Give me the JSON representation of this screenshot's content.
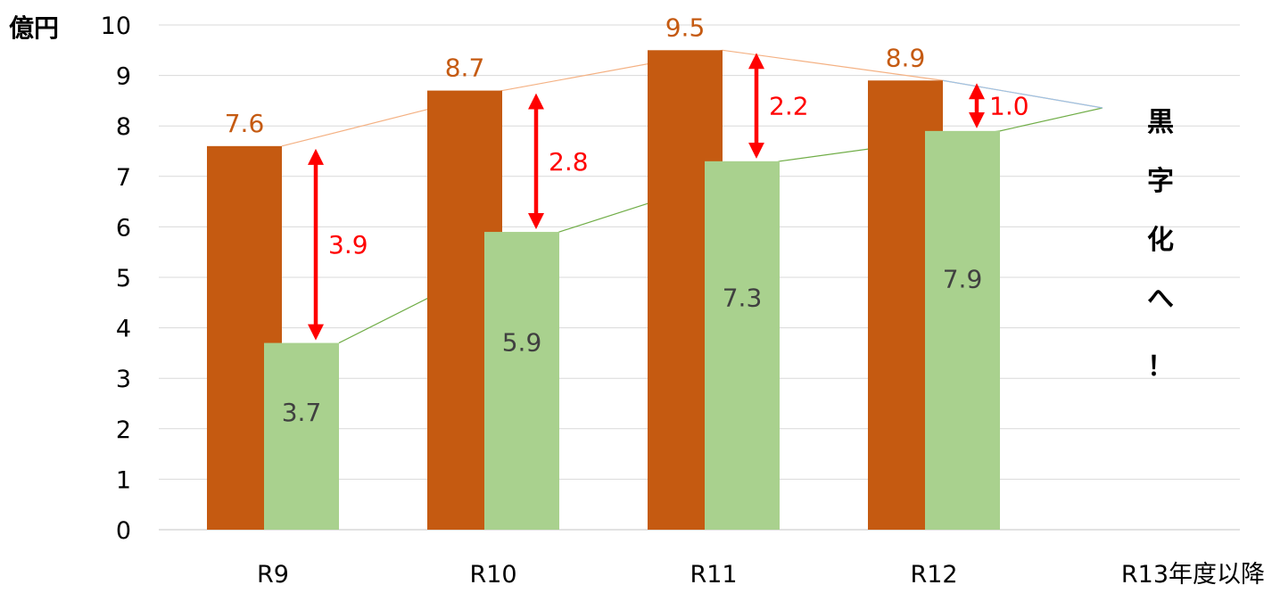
{
  "chart_data": {
    "type": "bar",
    "unit": "億円",
    "categories": [
      "R9",
      "R10",
      "R11",
      "R12"
    ],
    "extra_category": "R13年度以降",
    "ylim": [
      0,
      10
    ],
    "yticks": [
      "0",
      "1",
      "2",
      "3",
      "4",
      "5",
      "6",
      "7",
      "8",
      "9",
      "10"
    ],
    "grid": true,
    "series": [
      {
        "values": [
          7.6,
          8.7,
          9.5,
          8.9
        ],
        "labels": [
          "7.6",
          "8.7",
          "9.5",
          "8.9"
        ],
        "color": "#c55a11",
        "label_color": "#c55a11"
      },
      {
        "values": [
          3.7,
          5.9,
          7.3,
          7.9
        ],
        "labels": [
          "3.7",
          "5.9",
          "7.3",
          "7.9"
        ],
        "color": "#a9d18e",
        "label_color": "#404040"
      }
    ],
    "gaps": [
      {
        "value": 3.9,
        "label": "3.9"
      },
      {
        "value": 2.8,
        "label": "2.8"
      },
      {
        "value": 2.2,
        "label": "2.2"
      },
      {
        "value": 1.0,
        "label": "1.0"
      }
    ],
    "gap_color": "#ff0000",
    "annotation": [
      "黒",
      "字",
      "化",
      "へ",
      "！"
    ]
  }
}
